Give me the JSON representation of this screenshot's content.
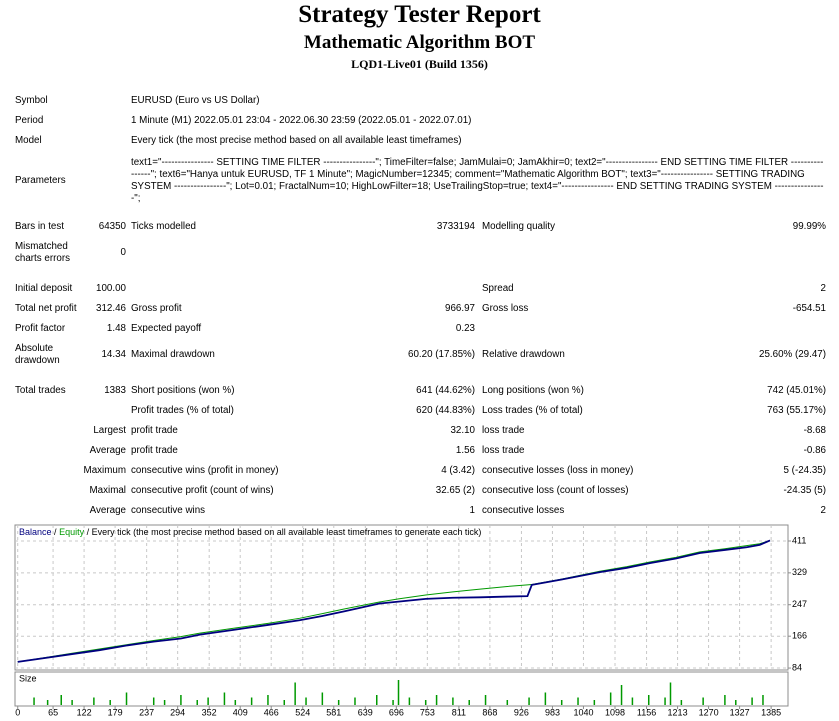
{
  "header": {
    "title": "Strategy Tester Report",
    "subtitle": "Mathematic Algorithm BOT",
    "build": "LQD1-Live01 (Build 1356)"
  },
  "info": [
    {
      "label": "Symbol",
      "value": "EURUSD (Euro vs US Dollar)"
    },
    {
      "label": "Period",
      "value": "1 Minute (M1) 2022.05.01 23:04 - 2022.06.30 23:59 (2022.05.01 - 2022.07.01)"
    },
    {
      "label": "Model",
      "value": "Every tick (the most precise method based on all available least timeframes)"
    },
    {
      "label": "Parameters",
      "value": "text1=\"---------------- SETTING TIME FILTER ----------------\"; TimeFilter=false; JamMulai=0; JamAkhir=0; text2=\"---------------- END SETTING TIME FILTER ----------------\"; text6=\"Hanya untuk EURUSD, TF 1 Minute\"; MagicNumber=12345; comment=\"Mathematic Algorithm BOT\"; text3=\"---------------- SETTING TRADING SYSTEM ----------------\"; Lot=0.01; FractalNum=10; HighLowFilter=18; UseTrailingStop=true; text4=\"---------------- END SETTING TRADING SYSTEM ----------------\";"
    }
  ],
  "stats": [
    [
      "Bars in test",
      "64350",
      "Ticks modelled",
      "3733194",
      "Modelling quality",
      "99.99%"
    ],
    [
      "Mismatched charts errors",
      "0",
      null,
      null,
      null,
      null
    ],
    [
      "Initial deposit",
      "100.00",
      null,
      null,
      "Spread",
      "2"
    ],
    [
      "Total net profit",
      "312.46",
      "Gross profit",
      "966.97",
      "Gross loss",
      "-654.51"
    ],
    [
      "Profit factor",
      "1.48",
      "Expected payoff",
      "0.23",
      null,
      null
    ],
    [
      "Absolute drawdown",
      "14.34",
      "Maximal drawdown",
      "60.20 (17.85%)",
      "Relative drawdown",
      "25.60% (29.47)"
    ],
    [
      "Total trades",
      "1383",
      "Short positions (won %)",
      "641 (44.62%)",
      "Long positions (won %)",
      "742 (45.01%)"
    ],
    [
      null,
      null,
      "Profit trades (% of total)",
      "620 (44.83%)",
      "Loss trades (% of total)",
      "763 (55.17%)"
    ],
    [
      null,
      "Largest",
      "profit trade",
      "32.10",
      "loss trade",
      "-8.68"
    ],
    [
      null,
      "Average",
      "profit trade",
      "1.56",
      "loss trade",
      "-0.86"
    ],
    [
      null,
      "Maximum",
      "consecutive wins (profit in money)",
      "4 (3.42)",
      "consecutive losses (loss in money)",
      "5 (-24.35)"
    ],
    [
      null,
      "Maximal",
      "consecutive profit (count of wins)",
      "32.65 (2)",
      "consecutive loss (count of losses)",
      "-24.35 (5)"
    ],
    [
      null,
      "Average",
      "consecutive wins",
      "1",
      "consecutive losses",
      "2"
    ]
  ],
  "chart_data": {
    "type": "line",
    "legend_separator": "/",
    "legend_note": "Every tick (the most precise method based on all available least timeframes to generate each tick)",
    "series": [
      {
        "name": "Balance",
        "color": "#00007f",
        "x": [
          0,
          50,
          100,
          150,
          200,
          250,
          300,
          335,
          400,
          460,
          518,
          560,
          600,
          665,
          700,
          750,
          800,
          850,
          900,
          937,
          945,
          1000,
          1070,
          1120,
          1162,
          1210,
          1254,
          1300,
          1340,
          1364,
          1383
        ],
        "values": [
          100,
          110,
          120,
          130,
          142,
          152,
          160,
          170,
          183,
          195,
          207,
          218,
          230,
          250,
          255,
          262,
          265,
          266,
          268,
          269,
          298,
          312,
          331,
          342,
          354,
          366,
          380,
          388,
          395,
          401,
          412.46
        ]
      },
      {
        "name": "Equity",
        "color": "#009900",
        "x": [
          0,
          50,
          100,
          150,
          200,
          250,
          300,
          335,
          400,
          460,
          518,
          560,
          600,
          665,
          700,
          750,
          800,
          850,
          900,
          937,
          945,
          1000,
          1070,
          1120,
          1162,
          1210,
          1254,
          1300,
          1340,
          1364,
          1383
        ],
        "values": [
          100,
          111,
          122,
          133,
          144,
          155,
          165,
          174,
          187,
          199,
          212,
          224,
          236,
          254,
          262,
          272,
          280,
          287,
          294,
          298,
          299,
          313,
          333,
          345,
          357,
          369,
          383,
          391,
          399,
          404,
          412.46
        ]
      }
    ],
    "xlim": [
      -5,
      1416
    ],
    "xticks": [
      0,
      65,
      122,
      179,
      237,
      294,
      352,
      409,
      466,
      524,
      581,
      639,
      696,
      753,
      811,
      868,
      926,
      983,
      1040,
      1098,
      1156,
      1213,
      1270,
      1327,
      1385
    ],
    "ylim": [
      79,
      447
    ],
    "yticks": [
      84,
      166,
      247,
      329,
      411
    ],
    "grid": true,
    "size": {
      "label": "Size",
      "color": "#009900",
      "ylim": [
        0,
        10
      ],
      "x": [
        30,
        55,
        80,
        100,
        140,
        170,
        200,
        250,
        270,
        300,
        330,
        350,
        380,
        400,
        430,
        460,
        490,
        510,
        530,
        560,
        590,
        620,
        660,
        690,
        700,
        720,
        750,
        770,
        800,
        830,
        860,
        900,
        940,
        970,
        1000,
        1030,
        1060,
        1090,
        1110,
        1130,
        1160,
        1190,
        1200,
        1220,
        1260,
        1300,
        1320,
        1350,
        1370
      ],
      "values": [
        3,
        2,
        4,
        2,
        3,
        2,
        5,
        3,
        2,
        4,
        2,
        3,
        5,
        2,
        3,
        4,
        2,
        9,
        3,
        5,
        2,
        3,
        4,
        2,
        10,
        3,
        2,
        4,
        3,
        2,
        4,
        2,
        3,
        5,
        2,
        3,
        2,
        5,
        8,
        3,
        4,
        3,
        9,
        2,
        3,
        4,
        2,
        3,
        4
      ]
    }
  }
}
